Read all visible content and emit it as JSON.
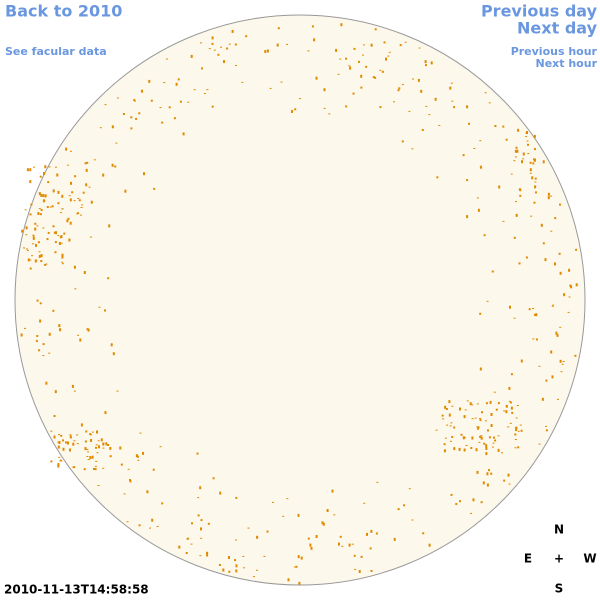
{
  "nav": {
    "back": "Back to 2010",
    "facular": "See facular data",
    "previous_day": "Previous day",
    "next_day": "Next day",
    "previous_hour": "Previous hour",
    "next_hour": "Next hour"
  },
  "timestamp": "2010-11-13T14:58:58",
  "compass": {
    "north": "N",
    "east": "E",
    "center": "+",
    "west": "W",
    "south": "S"
  }
}
